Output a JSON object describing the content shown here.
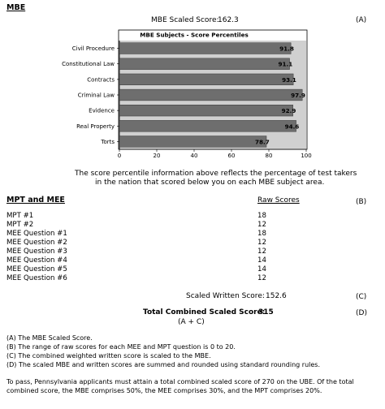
{
  "mbe": {
    "heading": "MBE",
    "scaled_score_label": "MBE Scaled Score:",
    "scaled_score_value": "162.3",
    "ref_a": "(A)"
  },
  "chart_data": {
    "type": "bar",
    "orientation": "horizontal",
    "title": "MBE Subjects - Score Percentiles",
    "categories": [
      "Civil Procedure",
      "Constitutional Law",
      "Contracts",
      "Criminal Law",
      "Evidence",
      "Real Property",
      "Torts"
    ],
    "values": [
      91.8,
      91.1,
      93.1,
      97.9,
      92.9,
      94.6,
      78.7
    ],
    "value_labels": [
      "91.8",
      "91.1",
      "93.1",
      "97.9",
      "92.9",
      "94.6",
      "78.7"
    ],
    "xlim": [
      0,
      100
    ],
    "xticks": [
      "0",
      "20",
      "40",
      "60",
      "80",
      "100"
    ],
    "bar_color": "#6e6e6e",
    "background_color": "#d0d0d0",
    "grid": false
  },
  "chart_note": {
    "line1": "The score percentile information above reflects the percentage of test takers",
    "line2": "in the nation that scored below you on each MBE subject area."
  },
  "written": {
    "heading": "MPT and MEE",
    "raw_scores_label": "Raw Scores",
    "ref_b": "(B)",
    "rows": [
      {
        "label": "MPT #1",
        "score": "18"
      },
      {
        "label": "MPT #2",
        "score": "12"
      },
      {
        "label": "MEE Question #1",
        "score": "18"
      },
      {
        "label": "MEE Question #2",
        "score": "12"
      },
      {
        "label": "MEE Question #3",
        "score": "12"
      },
      {
        "label": "MEE Question #4",
        "score": "14"
      },
      {
        "label": "MEE Question #5",
        "score": "14"
      },
      {
        "label": "MEE Question #6",
        "score": "12"
      }
    ],
    "scaled_written_label": "Scaled Written Score:",
    "scaled_written_value": "152.6",
    "ref_c": "(C)"
  },
  "total": {
    "label": "Total Combined Scaled Score:",
    "value": "315",
    "formula": "(A + C)",
    "ref_d": "(D)"
  },
  "notes": [
    "(A)  The MBE Scaled Score.",
    "(B)  The range of raw scores for each MEE and MPT question is 0 to 20.",
    "(C)  The combined weighted written score is scaled to the MBE.",
    "(D)  The scaled MBE and written scores are summed and rounded using standard rounding rules."
  ],
  "footer": {
    "line1": "To pass, Pennsylvania applicants must attain a total combined scaled score of 270 on the UBE.  Of the total",
    "line2": "combined score, the MBE comprises 50%, the MEE comprises 30%, and the MPT comprises 20%."
  }
}
